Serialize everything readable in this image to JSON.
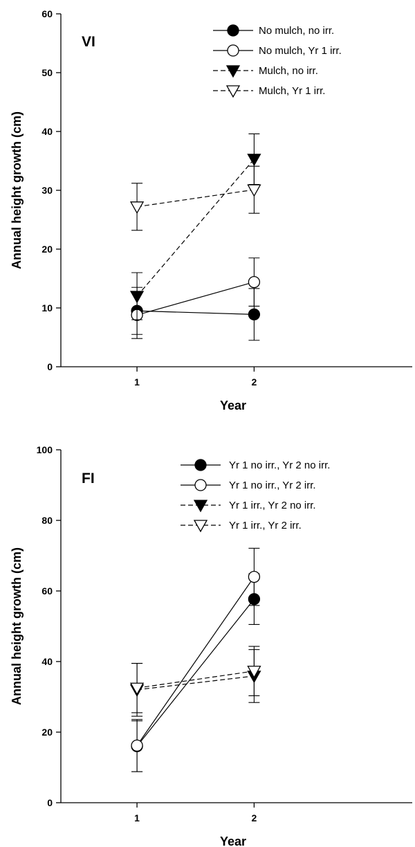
{
  "chart_data": [
    {
      "type": "line",
      "panel_label": "VI",
      "xlabel": "Year",
      "ylabel": "Annual height growth (cm)",
      "x": [
        1,
        2
      ],
      "x_tick_labels": [
        "1",
        "2"
      ],
      "xlim": [
        0.35,
        3.35
      ],
      "ylim": [
        0,
        60
      ],
      "y_ticks": [
        0,
        10,
        20,
        30,
        40,
        50,
        60
      ],
      "grid": false,
      "legend_position": "top-right",
      "error_bars": true,
      "series": [
        {
          "name": "No mulch, no irr.",
          "values": [
            9.5,
            8.9
          ],
          "errors": [
            4.0,
            4.4
          ],
          "marker": "circle-filled",
          "line": "solid"
        },
        {
          "name": "No mulch, Yr 1 irr.",
          "values": [
            8.8,
            14.4
          ],
          "errors": [
            4.0,
            4.1
          ],
          "marker": "circle-open",
          "line": "solid"
        },
        {
          "name": "Mulch, no irr.",
          "values": [
            12.0,
            35.3
          ],
          "errors": [
            4.0,
            4.3
          ],
          "marker": "triangle-down-filled",
          "line": "dashed"
        },
        {
          "name": "Mulch, Yr 1 irr.",
          "values": [
            27.2,
            30.1
          ],
          "errors": [
            4.0,
            4.0
          ],
          "marker": "triangle-down-open",
          "line": "dashed"
        }
      ]
    },
    {
      "type": "line",
      "panel_label": "FI",
      "xlabel": "Year",
      "ylabel": "Annual height growth (cm)",
      "x": [
        1,
        2
      ],
      "x_tick_labels": [
        "1",
        "2"
      ],
      "xlim": [
        0.35,
        3.35
      ],
      "ylim": [
        0,
        100
      ],
      "y_ticks": [
        0,
        20,
        40,
        60,
        80,
        100
      ],
      "grid": false,
      "legend_position": "top-right",
      "error_bars": true,
      "series": [
        {
          "name": "Yr 1 no irr., Yr 2 no irr.",
          "values": [
            16.0,
            57.7
          ],
          "errors": [
            7.2,
            7.2
          ],
          "marker": "circle-filled",
          "line": "solid"
        },
        {
          "name": "Yr 1 no irr., Yr 2 irr.",
          "values": [
            16.2,
            64.0
          ],
          "errors": [
            7.4,
            8.1
          ],
          "marker": "circle-open",
          "line": "solid"
        },
        {
          "name": "Yr 1 irr., Yr 2 no irr.",
          "values": [
            32.0,
            35.9
          ],
          "errors": [
            7.5,
            7.5
          ],
          "marker": "triangle-down-filled",
          "line": "dashed"
        },
        {
          "name": "Yr 1 irr., Yr 2 irr.",
          "values": [
            32.5,
            37.3
          ],
          "errors": [
            7.0,
            7.0
          ],
          "marker": "triangle-down-open",
          "line": "dashed"
        }
      ]
    }
  ]
}
